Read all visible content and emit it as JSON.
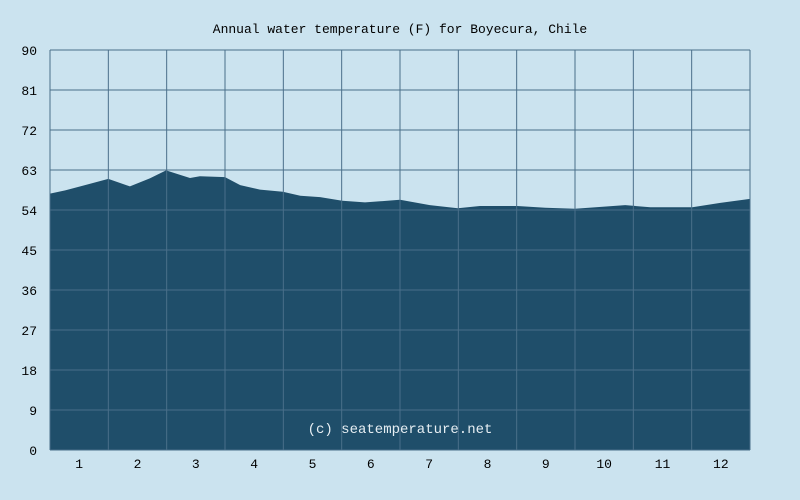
{
  "chart_data": {
    "type": "area",
    "title": "Annual water temperature (F) for Boyecura, Chile",
    "xlabel": "",
    "ylabel": "",
    "xlim": [
      0.5,
      12.5
    ],
    "ylim": [
      0,
      90
    ],
    "x_ticks": [
      "1",
      "2",
      "3",
      "4",
      "5",
      "6",
      "7",
      "8",
      "9",
      "10",
      "11",
      "12"
    ],
    "y_ticks": [
      0,
      9,
      18,
      27,
      36,
      45,
      54,
      63,
      72,
      81,
      90
    ],
    "grid": true,
    "annotation": "(c) seatemperature.net",
    "colors": {
      "background": "#cbe3ef",
      "fill": "#1f4e6a",
      "grid": "#4a6f8a"
    },
    "x": [
      0.5,
      0.76,
      1.1,
      1.5,
      1.87,
      2.21,
      2.49,
      2.73,
      2.9,
      3.07,
      3.5,
      3.76,
      4.1,
      4.49,
      4.79,
      5.13,
      5.51,
      5.9,
      6.5,
      7.01,
      7.49,
      7.87,
      8.51,
      8.99,
      9.5,
      10.36,
      10.79,
      11.51,
      11.99,
      12.5
    ],
    "values": [
      57.7,
      58.4,
      59.6,
      61.0,
      59.3,
      61.1,
      62.9,
      61.9,
      61.2,
      61.6,
      61.4,
      59.6,
      58.6,
      58.1,
      57.2,
      56.9,
      56.1,
      55.7,
      56.3,
      55.1,
      54.4,
      54.9,
      54.9,
      54.5,
      54.3,
      55.1,
      54.6,
      54.6,
      55.6,
      56.5
    ]
  }
}
